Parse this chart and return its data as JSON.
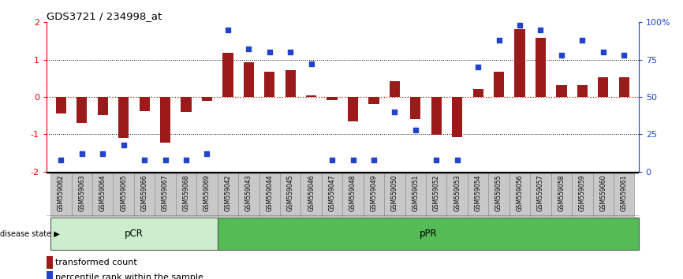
{
  "title": "GDS3721 / 234998_at",
  "samples": [
    "GSM559062",
    "GSM559063",
    "GSM559064",
    "GSM559065",
    "GSM559066",
    "GSM559067",
    "GSM559068",
    "GSM559069",
    "GSM559042",
    "GSM559043",
    "GSM559044",
    "GSM559045",
    "GSM559046",
    "GSM559047",
    "GSM559048",
    "GSM559049",
    "GSM559050",
    "GSM559051",
    "GSM559052",
    "GSM559053",
    "GSM559054",
    "GSM559055",
    "GSM559056",
    "GSM559057",
    "GSM559058",
    "GSM559059",
    "GSM559060",
    "GSM559061"
  ],
  "bar_values": [
    -0.45,
    -0.7,
    -0.48,
    -1.1,
    -0.38,
    -1.22,
    -0.4,
    -0.1,
    1.18,
    0.92,
    0.68,
    0.72,
    0.04,
    -0.08,
    -0.65,
    -0.18,
    0.42,
    -0.6,
    -1.02,
    -1.08,
    0.22,
    0.68,
    1.82,
    1.58,
    0.32,
    0.32,
    0.52,
    0.52
  ],
  "percentile_values": [
    8,
    12,
    12,
    18,
    8,
    8,
    8,
    12,
    95,
    82,
    80,
    80,
    72,
    8,
    8,
    8,
    40,
    28,
    8,
    8,
    70,
    88,
    98,
    95,
    78,
    88,
    80,
    78
  ],
  "pCR_count": 8,
  "pPR_count": 20,
  "bar_color": "#9B1B1B",
  "dot_color": "#2244CC",
  "ylim_left": [
    -2.0,
    2.0
  ],
  "ylim_right": [
    0,
    100
  ],
  "yticks_left": [
    -2,
    -1,
    0,
    1,
    2
  ],
  "yticks_right": [
    0,
    25,
    50,
    75,
    100
  ],
  "zero_line_color": "#CC0000",
  "pCR_color": "#cceecc",
  "pPR_color": "#55bb55",
  "disease_state_label": "disease state",
  "pCR_label": "pCR",
  "pPR_label": "pPR",
  "legend_bar_label": "transformed count",
  "legend_dot_label": "percentile rank within the sample",
  "bg_color": "#ffffff",
  "tick_bg_color": "#c8c8c8"
}
